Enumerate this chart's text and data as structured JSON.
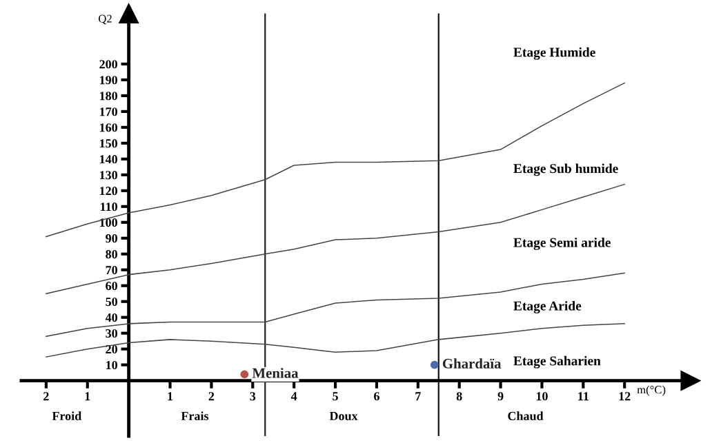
{
  "chart_data": {
    "type": "line",
    "xlabel": "m(°C)",
    "ylabel": "Q2",
    "xlim": [
      -2.6,
      13.6
    ],
    "ylim": [
      -35,
      232
    ],
    "xticks": [
      {
        "value": -2,
        "label": "2"
      },
      {
        "value": -1,
        "label": "1"
      },
      1,
      2,
      3,
      4,
      5,
      6,
      7,
      8,
      9,
      10,
      11,
      12
    ],
    "yticks": [
      10,
      20,
      30,
      40,
      50,
      60,
      70,
      80,
      90,
      100,
      110,
      120,
      130,
      140,
      150,
      160,
      170,
      180,
      190,
      200
    ],
    "grid": false,
    "legend": false,
    "marker": "none",
    "line_style": "solid",
    "series": [
      {
        "color": "#444444",
        "x": [
          -2,
          -1,
          0,
          1,
          2,
          3.3,
          4,
          5,
          6,
          7.5,
          9,
          10,
          11,
          12
        ],
        "values": [
          91,
          99,
          106,
          111,
          117,
          127,
          136,
          138,
          138,
          139,
          146,
          161,
          175,
          188
        ]
      },
      {
        "color": "#444444",
        "x": [
          -2,
          -1,
          0,
          1,
          2,
          3.3,
          4,
          5,
          6,
          7.5,
          9,
          10,
          11,
          12
        ],
        "values": [
          55,
          61,
          67,
          70,
          74,
          80,
          83,
          89,
          90,
          94,
          100,
          108,
          116,
          124
        ]
      },
      {
        "color": "#444444",
        "x": [
          -2,
          -1,
          0,
          1,
          2,
          3.3,
          4,
          5,
          6,
          7.5,
          9,
          10,
          11,
          12
        ],
        "values": [
          28,
          33,
          36,
          37,
          37,
          37,
          42,
          49,
          51,
          52,
          56,
          61,
          64,
          68
        ]
      },
      {
        "color": "#444444",
        "x": [
          -2,
          -1,
          0,
          1,
          2,
          3.3,
          4,
          5,
          6,
          7.5,
          9,
          10,
          11,
          12
        ],
        "values": [
          15,
          20,
          24,
          26,
          25,
          23,
          21,
          18,
          19,
          26,
          30,
          33,
          35,
          36
        ]
      },
      {
        "type": "scatter",
        "name": "Meniaa",
        "color": "#b5524a",
        "marker": "circle",
        "x": [
          2.8
        ],
        "values": [
          4
        ]
      },
      {
        "type": "scatter",
        "name": "Ghardaïa",
        "color": "#4a6aa8",
        "marker": "circle",
        "x": [
          7.4
        ],
        "values": [
          10
        ]
      }
    ],
    "ref_lines": [
      {
        "axis": "x",
        "value": 3.3,
        "color": "#222222"
      },
      {
        "axis": "x",
        "value": 7.5,
        "color": "#111111"
      }
    ],
    "annotations": [
      "Etage Humide",
      "Etage Sub humide",
      "Etage Semi aride",
      "Etage Aride",
      "Etage Saharien",
      "Froid",
      "Frais",
      "Doux",
      "Chaud"
    ]
  }
}
